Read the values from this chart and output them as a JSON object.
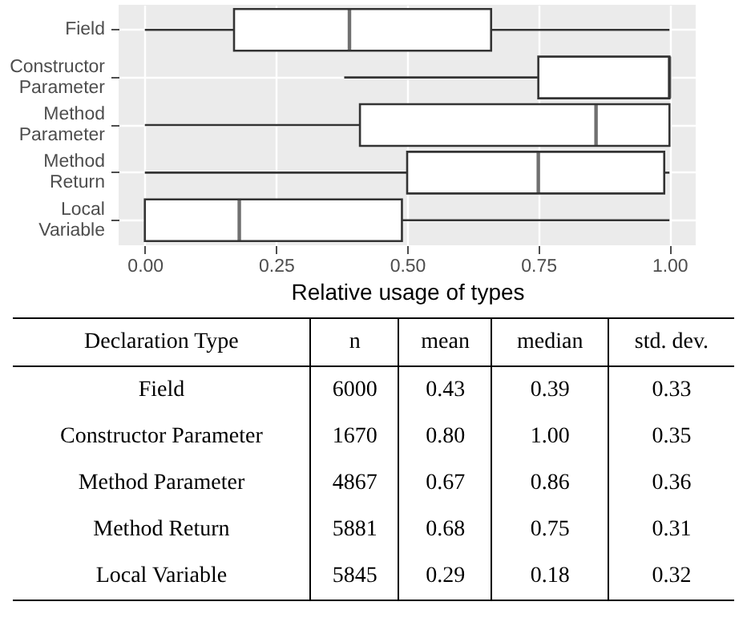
{
  "chart_data": [
    {
      "type": "box",
      "orientation": "horizontal",
      "xlabel": "Relative usage of types",
      "categories": [
        "Field",
        "Constructor Parameter",
        "Method Parameter",
        "Method Return",
        "Local Variable"
      ],
      "boxes": [
        {
          "low": 0,
          "q1": 0.17,
          "median": 0.39,
          "q3": 0.66,
          "high": 1
        },
        {
          "low": 0.38,
          "q1": 0.75,
          "median": 1,
          "q3": 1,
          "high": 1
        },
        {
          "low": 0,
          "q1": 0.41,
          "median": 0.86,
          "q3": 1,
          "high": 1
        },
        {
          "low": 0,
          "q1": 0.5,
          "median": 0.75,
          "q3": 0.99,
          "high": 1
        },
        {
          "low": 0,
          "q1": 0,
          "median": 0.18,
          "q3": 0.49,
          "high": 1
        }
      ],
      "xlim": [
        -0.05,
        1.05
      ],
      "xticks": [
        {
          "value": 0,
          "label": "0.00"
        },
        {
          "value": 0.25,
          "label": "0.25"
        },
        {
          "value": 0.5,
          "label": "0.50"
        },
        {
          "value": 0.75,
          "label": "0.75"
        },
        {
          "value": 1,
          "label": "1.00"
        }
      ],
      "grid": true
    },
    {
      "type": "other",
      "ylabel": "Declaration Type",
      "categories": [
        "n",
        "mean",
        "median",
        "std. dev."
      ],
      "y_categories": [
        "Field",
        "Constructor Parameter",
        "Method Parameter",
        "Method Return",
        "Local Variable"
      ],
      "cell_labels": [
        [
          "6000",
          "0.43",
          "0.39",
          "0.33"
        ],
        [
          "1670",
          "0.80",
          "1.00",
          "0.35"
        ],
        [
          "4867",
          "0.67",
          "0.86",
          "0.36"
        ],
        [
          "5881",
          "0.68",
          "0.75",
          "0.31"
        ],
        [
          "5845",
          "0.29",
          "0.18",
          "0.32"
        ]
      ]
    }
  ]
}
